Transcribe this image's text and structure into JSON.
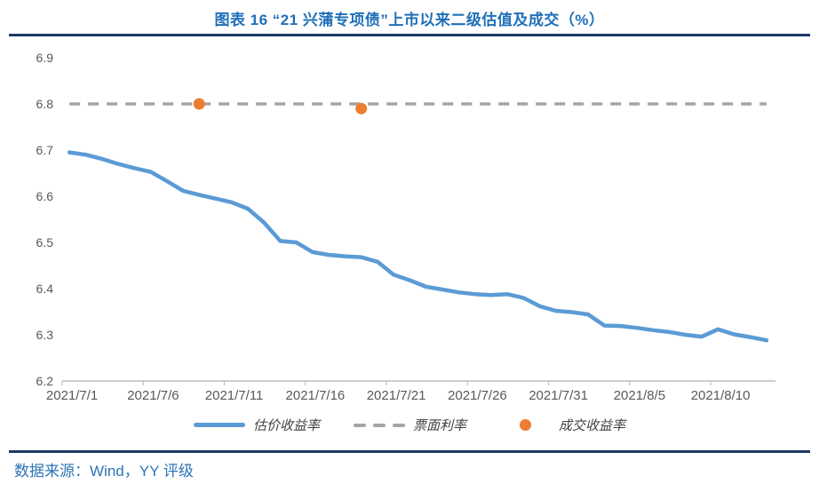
{
  "header": {
    "title": "图表 16 “21 兴蒲专项债”上市以来二级估值及成交（%）"
  },
  "footer": {
    "source": "数据来源：Wind，YY 评级"
  },
  "colors": {
    "title_blue": "#1F6FB8",
    "rule_navy": "#1F3864",
    "source_blue": "#2E74B5",
    "line_blue": "#5B9BD5",
    "dot_orange": "#ED7D31",
    "dash_gray": "#A5A5A5",
    "axis_text": "#595959",
    "axis_line": "#BFBFBF"
  },
  "legend": {
    "items": [
      {
        "label": "估价收益率",
        "marker": "line"
      },
      {
        "label": "票面利率",
        "marker": "dash"
      },
      {
        "label": "成交收益率",
        "marker": "dot"
      }
    ]
  },
  "chart_data": {
    "type": "line",
    "title": "图表 16 “21 兴蒲专项债”上市以来二级估值及成交（%）",
    "xlabel": "",
    "ylabel": "",
    "ylim": [
      6.2,
      6.9
    ],
    "ytick_step": 0.1,
    "yticks": [
      6.9,
      6.8,
      6.7,
      6.6,
      6.5,
      6.4,
      6.3,
      6.2
    ],
    "grid": false,
    "legend_position": "bottom",
    "x": [
      "2021/7/1",
      "2021/7/2",
      "2021/7/3",
      "2021/7/4",
      "2021/7/5",
      "2021/7/6",
      "2021/7/7",
      "2021/7/8",
      "2021/7/9",
      "2021/7/10",
      "2021/7/11",
      "2021/7/12",
      "2021/7/13",
      "2021/7/14",
      "2021/7/15",
      "2021/7/16",
      "2021/7/17",
      "2021/7/18",
      "2021/7/19",
      "2021/7/20",
      "2021/7/21",
      "2021/7/22",
      "2021/7/23",
      "2021/7/24",
      "2021/7/25",
      "2021/7/26",
      "2021/7/27",
      "2021/7/28",
      "2021/7/29",
      "2021/7/30",
      "2021/7/31",
      "2021/8/1",
      "2021/8/2",
      "2021/8/3",
      "2021/8/4",
      "2021/8/5",
      "2021/8/6",
      "2021/8/7",
      "2021/8/8",
      "2021/8/9",
      "2021/8/10",
      "2021/8/11",
      "2021/8/12",
      "2021/8/13"
    ],
    "xticks": [
      "2021/7/1",
      "2021/7/6",
      "2021/7/11",
      "2021/7/16",
      "2021/7/21",
      "2021/7/26",
      "2021/7/31",
      "2021/8/5",
      "2021/8/10"
    ],
    "series": [
      {
        "name": "估价收益率",
        "type": "line",
        "color": "#5B9BD5",
        "values": [
          6.695,
          6.69,
          6.681,
          6.67,
          6.661,
          6.653,
          6.633,
          6.612,
          6.603,
          6.595,
          6.587,
          6.573,
          6.543,
          6.503,
          6.5,
          6.479,
          6.473,
          6.47,
          6.468,
          6.458,
          6.43,
          6.418,
          6.404,
          6.398,
          6.392,
          6.388,
          6.386,
          6.388,
          6.38,
          6.362,
          6.352,
          6.349,
          6.344,
          6.32,
          6.319,
          6.315,
          6.31,
          6.306,
          6.3,
          6.296,
          6.312,
          6.301,
          6.295,
          6.288
        ]
      },
      {
        "name": "票面利率",
        "type": "dashed_line",
        "color": "#A5A5A5",
        "value": 6.8
      },
      {
        "name": "成交收益率",
        "type": "scatter",
        "color": "#ED7D31",
        "points": [
          {
            "x": "2021/7/9",
            "y": 6.8
          },
          {
            "x": "2021/7/19",
            "y": 6.79
          }
        ]
      }
    ]
  }
}
